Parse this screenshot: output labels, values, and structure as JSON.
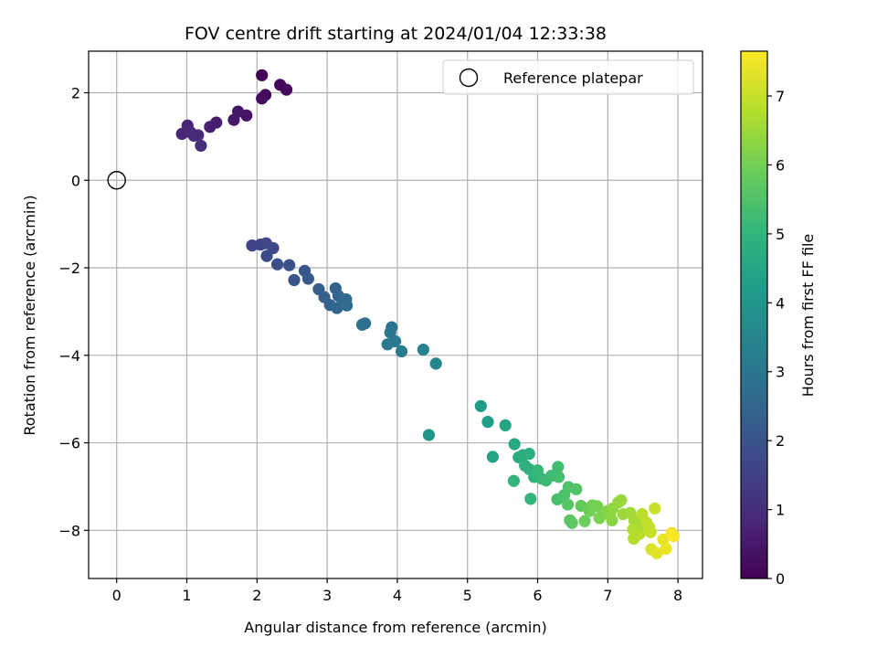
{
  "chart_data": {
    "type": "scatter",
    "title": "FOV centre drift starting at 2024/01/04 12:33:38",
    "xlabel": "Angular distance from reference (arcmin)",
    "ylabel": "Rotation from reference (arcmin)",
    "xlim": [
      -0.4,
      8.35
    ],
    "ylim": [
      -9.1,
      2.95
    ],
    "xticks": [
      0,
      1,
      2,
      3,
      4,
      5,
      6,
      7,
      8
    ],
    "yticks": [
      -8,
      -6,
      -4,
      -2,
      0,
      2
    ],
    "grid": true,
    "legend": {
      "placement": "top-right",
      "entries": [
        "Reference platepar"
      ]
    },
    "reference_point": {
      "x": 0,
      "y": 0,
      "marker": "open-circle"
    },
    "colorbar": {
      "label": "Hours from first FF file",
      "range": [
        0,
        7.65
      ],
      "ticks": [
        0,
        1,
        2,
        3,
        4,
        5,
        6,
        7
      ],
      "colormap": "viridis"
    },
    "colormap_stops": [
      "#440154",
      "#482878",
      "#3e4989",
      "#31688e",
      "#26828e",
      "#1f9e89",
      "#35b779",
      "#6ece58",
      "#b5de2b",
      "#fde725"
    ],
    "points": [
      {
        "x": 2.07,
        "y": 2.4,
        "c": 0.05
      },
      {
        "x": 2.33,
        "y": 2.18,
        "c": 0.1
      },
      {
        "x": 2.42,
        "y": 2.07,
        "c": 0.15
      },
      {
        "x": 2.12,
        "y": 1.95,
        "c": 0.2
      },
      {
        "x": 2.07,
        "y": 1.87,
        "c": 0.25
      },
      {
        "x": 1.85,
        "y": 1.48,
        "c": 0.4
      },
      {
        "x": 1.73,
        "y": 1.57,
        "c": 0.45
      },
      {
        "x": 1.67,
        "y": 1.38,
        "c": 0.5
      },
      {
        "x": 1.42,
        "y": 1.32,
        "c": 0.6
      },
      {
        "x": 1.33,
        "y": 1.22,
        "c": 0.65
      },
      {
        "x": 1.01,
        "y": 1.25,
        "c": 0.75
      },
      {
        "x": 0.93,
        "y": 1.06,
        "c": 0.8
      },
      {
        "x": 1.05,
        "y": 1.1,
        "c": 0.85
      },
      {
        "x": 1.1,
        "y": 1.02,
        "c": 0.9
      },
      {
        "x": 1.16,
        "y": 1.03,
        "c": 0.95
      },
      {
        "x": 1.2,
        "y": 0.79,
        "c": 1.0
      },
      {
        "x": 1.93,
        "y": -1.49,
        "c": 1.55
      },
      {
        "x": 2.05,
        "y": -1.47,
        "c": 1.6
      },
      {
        "x": 2.13,
        "y": -1.44,
        "c": 1.65
      },
      {
        "x": 2.23,
        "y": -1.55,
        "c": 1.7
      },
      {
        "x": 2.14,
        "y": -1.73,
        "c": 1.75
      },
      {
        "x": 2.29,
        "y": -1.92,
        "c": 1.85
      },
      {
        "x": 2.46,
        "y": -1.94,
        "c": 1.95
      },
      {
        "x": 2.53,
        "y": -2.28,
        "c": 2.05
      },
      {
        "x": 2.68,
        "y": -2.07,
        "c": 2.1
      },
      {
        "x": 2.73,
        "y": -2.25,
        "c": 2.15
      },
      {
        "x": 2.88,
        "y": -2.49,
        "c": 2.25
      },
      {
        "x": 2.96,
        "y": -2.67,
        "c": 2.3
      },
      {
        "x": 3.04,
        "y": -2.85,
        "c": 2.35
      },
      {
        "x": 3.12,
        "y": -2.47,
        "c": 2.4
      },
      {
        "x": 3.16,
        "y": -2.64,
        "c": 2.45
      },
      {
        "x": 3.14,
        "y": -2.92,
        "c": 2.5
      },
      {
        "x": 3.22,
        "y": -2.81,
        "c": 2.55
      },
      {
        "x": 3.27,
        "y": -2.72,
        "c": 2.6
      },
      {
        "x": 3.28,
        "y": -2.86,
        "c": 2.65
      },
      {
        "x": 3.5,
        "y": -3.3,
        "c": 2.8
      },
      {
        "x": 3.54,
        "y": -3.27,
        "c": 2.85
      },
      {
        "x": 3.92,
        "y": -3.36,
        "c": 3.0
      },
      {
        "x": 3.9,
        "y": -3.48,
        "c": 3.05
      },
      {
        "x": 3.86,
        "y": -3.75,
        "c": 3.1
      },
      {
        "x": 3.97,
        "y": -3.68,
        "c": 3.15
      },
      {
        "x": 4.06,
        "y": -3.91,
        "c": 3.2
      },
      {
        "x": 4.37,
        "y": -3.87,
        "c": 3.4
      },
      {
        "x": 4.55,
        "y": -4.19,
        "c": 3.5
      },
      {
        "x": 4.45,
        "y": -5.82,
        "c": 4.0
      },
      {
        "x": 5.19,
        "y": -5.16,
        "c": 4.2
      },
      {
        "x": 5.29,
        "y": -5.52,
        "c": 4.3
      },
      {
        "x": 5.36,
        "y": -6.32,
        "c": 4.4
      },
      {
        "x": 5.54,
        "y": -5.6,
        "c": 4.5
      },
      {
        "x": 5.67,
        "y": -6.03,
        "c": 4.6
      },
      {
        "x": 5.73,
        "y": -6.33,
        "c": 4.7
      },
      {
        "x": 5.79,
        "y": -6.28,
        "c": 4.75
      },
      {
        "x": 5.88,
        "y": -6.25,
        "c": 4.8
      },
      {
        "x": 5.82,
        "y": -6.52,
        "c": 4.85
      },
      {
        "x": 5.88,
        "y": -6.6,
        "c": 4.9
      },
      {
        "x": 5.95,
        "y": -6.78,
        "c": 4.95
      },
      {
        "x": 5.66,
        "y": -6.87,
        "c": 5.0
      },
      {
        "x": 5.9,
        "y": -7.28,
        "c": 5.05
      },
      {
        "x": 6.0,
        "y": -6.63,
        "c": 5.1
      },
      {
        "x": 6.06,
        "y": -6.82,
        "c": 5.15
      },
      {
        "x": 6.12,
        "y": -6.86,
        "c": 5.2
      },
      {
        "x": 6.2,
        "y": -6.75,
        "c": 5.25
      },
      {
        "x": 6.29,
        "y": -6.55,
        "c": 5.3
      },
      {
        "x": 6.3,
        "y": -6.78,
        "c": 5.35
      },
      {
        "x": 6.28,
        "y": -7.29,
        "c": 5.4
      },
      {
        "x": 6.38,
        "y": -7.19,
        "c": 5.45
      },
      {
        "x": 6.44,
        "y": -7.01,
        "c": 5.5
      },
      {
        "x": 6.55,
        "y": -7.06,
        "c": 5.55
      },
      {
        "x": 6.43,
        "y": -7.41,
        "c": 5.6
      },
      {
        "x": 6.46,
        "y": -7.77,
        "c": 5.65
      },
      {
        "x": 6.49,
        "y": -7.83,
        "c": 5.7
      },
      {
        "x": 6.62,
        "y": -7.44,
        "c": 5.8
      },
      {
        "x": 6.67,
        "y": -7.79,
        "c": 5.9
      },
      {
        "x": 6.74,
        "y": -7.56,
        "c": 5.95
      },
      {
        "x": 6.78,
        "y": -7.43,
        "c": 6.0
      },
      {
        "x": 6.85,
        "y": -7.45,
        "c": 6.05
      },
      {
        "x": 6.88,
        "y": -7.72,
        "c": 6.1
      },
      {
        "x": 6.92,
        "y": -7.64,
        "c": 6.15
      },
      {
        "x": 7.0,
        "y": -7.56,
        "c": 6.2
      },
      {
        "x": 7.03,
        "y": -7.62,
        "c": 6.25
      },
      {
        "x": 7.06,
        "y": -7.77,
        "c": 6.3
      },
      {
        "x": 7.07,
        "y": -7.5,
        "c": 6.35
      },
      {
        "x": 7.15,
        "y": -7.36,
        "c": 6.4
      },
      {
        "x": 7.19,
        "y": -7.31,
        "c": 6.45
      },
      {
        "x": 7.22,
        "y": -7.63,
        "c": 6.5
      },
      {
        "x": 7.32,
        "y": -7.6,
        "c": 6.55
      },
      {
        "x": 7.38,
        "y": -7.78,
        "c": 6.6
      },
      {
        "x": 7.42,
        "y": -7.92,
        "c": 6.65
      },
      {
        "x": 7.36,
        "y": -7.98,
        "c": 6.7
      },
      {
        "x": 7.37,
        "y": -8.19,
        "c": 6.75
      },
      {
        "x": 7.45,
        "y": -8.08,
        "c": 6.8
      },
      {
        "x": 7.49,
        "y": -7.63,
        "c": 6.85
      },
      {
        "x": 7.55,
        "y": -7.82,
        "c": 6.9
      },
      {
        "x": 7.59,
        "y": -7.93,
        "c": 6.95
      },
      {
        "x": 7.61,
        "y": -8.04,
        "c": 7.0
      },
      {
        "x": 7.67,
        "y": -7.5,
        "c": 7.05
      },
      {
        "x": 7.62,
        "y": -8.43,
        "c": 7.2
      },
      {
        "x": 7.7,
        "y": -8.52,
        "c": 7.3
      },
      {
        "x": 7.79,
        "y": -8.21,
        "c": 7.4
      },
      {
        "x": 7.83,
        "y": -8.42,
        "c": 7.45
      },
      {
        "x": 7.91,
        "y": -8.06,
        "c": 7.5
      },
      {
        "x": 7.94,
        "y": -8.13,
        "c": 7.6
      }
    ]
  }
}
